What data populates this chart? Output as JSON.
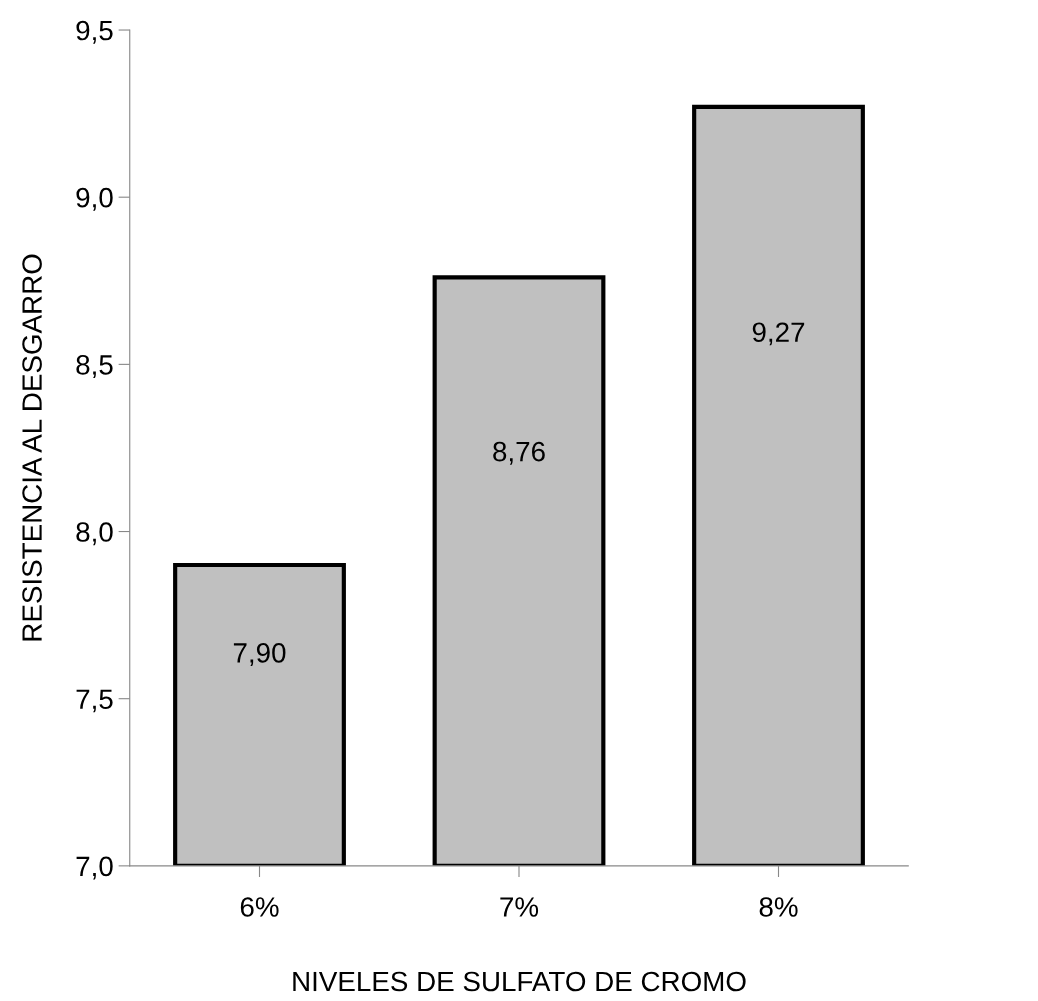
{
  "chart_data": {
    "type": "bar",
    "xlabel": "NIVELES DE SULFATO DE CROMO",
    "ylabel": "RESISTENCIA AL DESGARRO",
    "categories": [
      "6%",
      "7%",
      "8%"
    ],
    "values": [
      7.9,
      8.76,
      9.27
    ],
    "value_labels": [
      "7,90",
      "8,76",
      "9,27"
    ],
    "color": "#c0c0c0",
    "ylim": [
      7.0,
      9.5
    ],
    "yticks": [
      {
        "value": 7.0,
        "label": "7,0"
      },
      {
        "value": 7.5,
        "label": "7,5"
      },
      {
        "value": 8.0,
        "label": "8,0"
      },
      {
        "value": 8.5,
        "label": "8,5"
      },
      {
        "value": 9.0,
        "label": "9,0"
      },
      {
        "value": 9.5,
        "label": "9,5"
      }
    ],
    "grid": false,
    "legend": false
  }
}
